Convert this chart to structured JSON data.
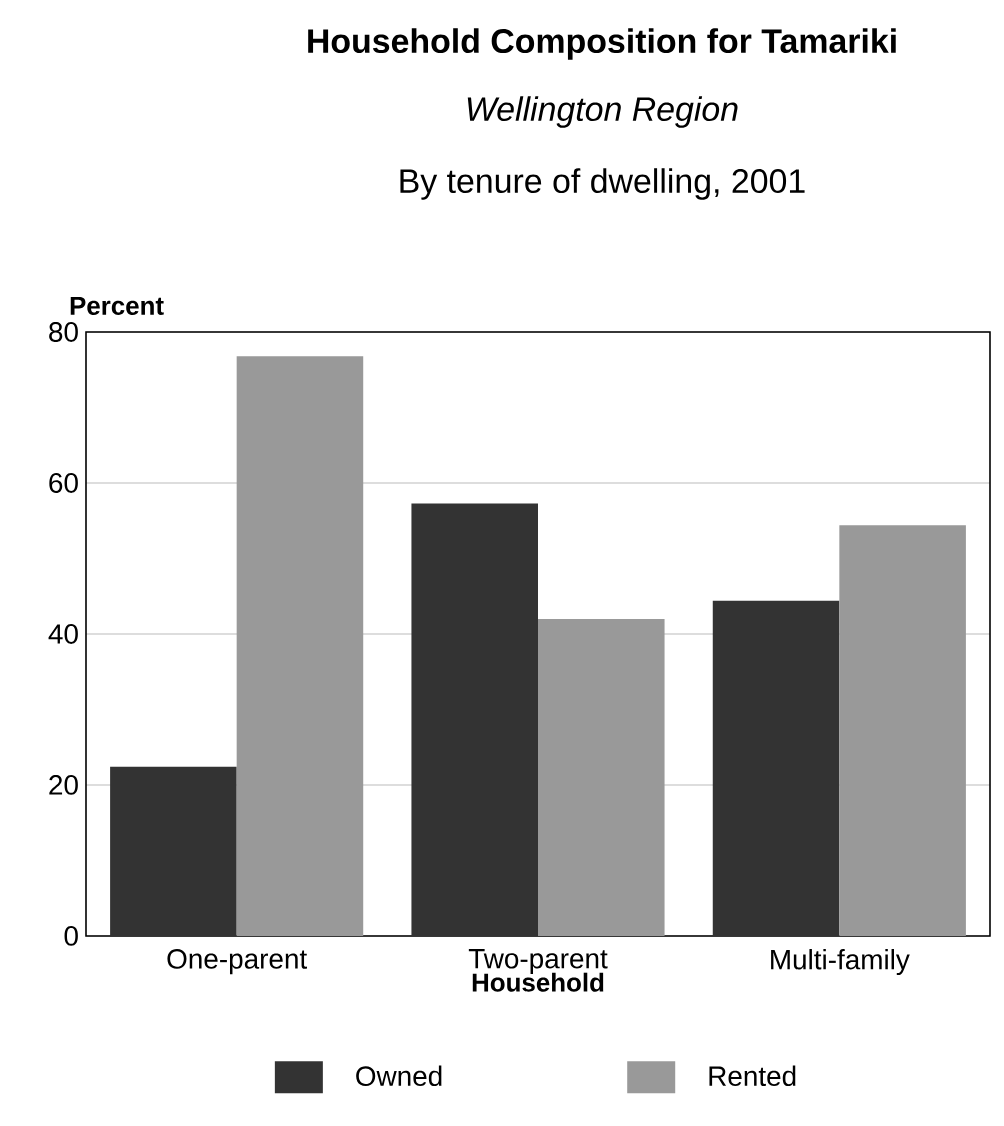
{
  "chart_data": {
    "type": "bar",
    "title": "Household Composition for Tamariki",
    "subtitle": "Wellington Region",
    "annotations": [
      "By tenure of dwelling, 2001"
    ],
    "xlabel": "Household",
    "ylabel": "Percent",
    "categories": [
      "One-parent",
      "Two-parent",
      "Multi-family"
    ],
    "series": [
      {
        "name": "Owned",
        "color": "#333333",
        "values": [
          22.4,
          57.3,
          44.4
        ]
      },
      {
        "name": "Rented",
        "color": "#999999",
        "values": [
          76.8,
          42.0,
          54.4
        ]
      }
    ],
    "ylim": [
      0,
      80
    ],
    "yticks": [
      0,
      20,
      40,
      60,
      80
    ],
    "grid": "y",
    "legend": "bottom"
  }
}
